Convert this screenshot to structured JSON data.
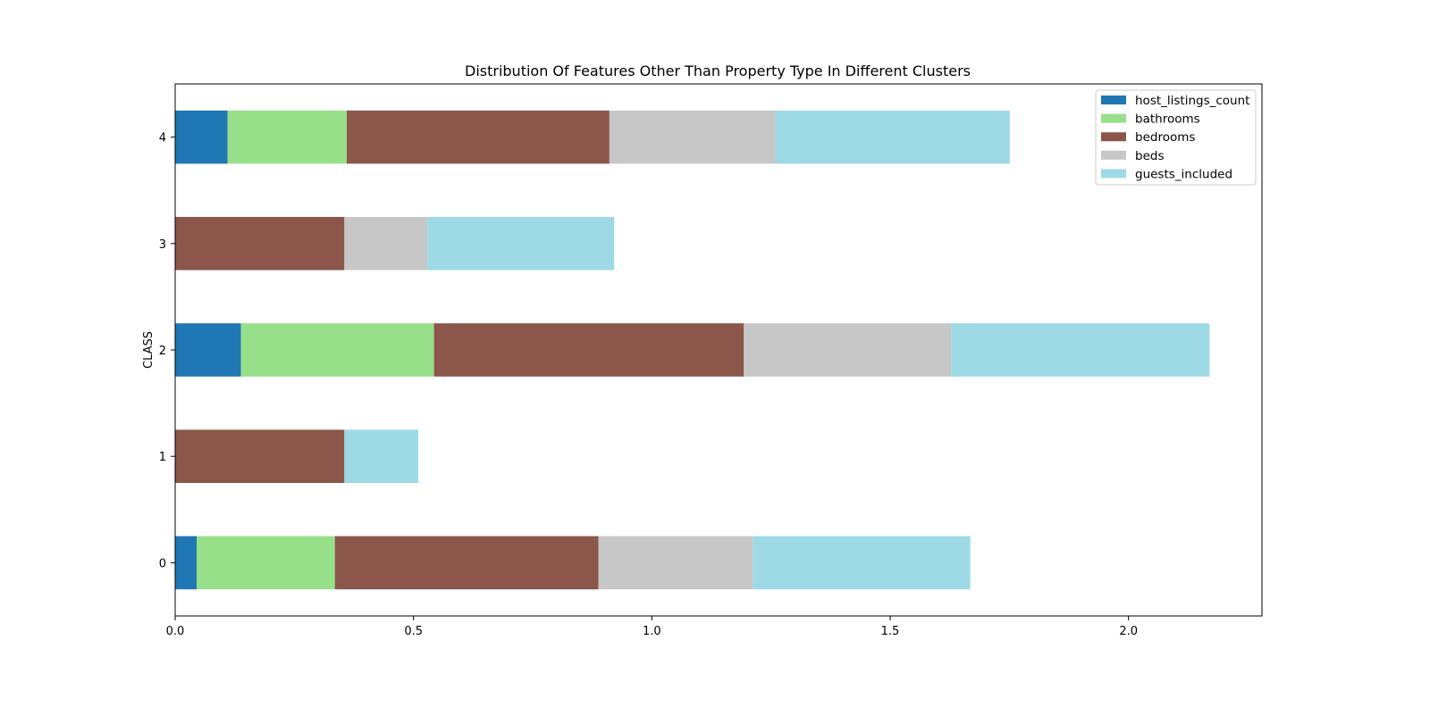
{
  "chart_data": {
    "type": "bar",
    "orientation": "horizontal",
    "stacked": true,
    "title": "Distribution Of Features Other Than Property Type In Different Clusters",
    "xlabel": "",
    "ylabel": "CLASS",
    "categories": [
      "0",
      "1",
      "2",
      "3",
      "4"
    ],
    "xlim": [
      0,
      2.28
    ],
    "xticks": [
      0.0,
      0.5,
      1.0,
      1.5,
      2.0
    ],
    "xtick_labels": [
      "0.0",
      "0.5",
      "1.0",
      "1.5",
      "2.0"
    ],
    "grid": false,
    "legend_position": "top-right",
    "series": [
      {
        "name": "host_listings_count",
        "color": "#1f77b4",
        "values": [
          0.045,
          0.0,
          0.138,
          0.0,
          0.11
        ]
      },
      {
        "name": "bathrooms",
        "color": "#98df8a",
        "values": [
          0.29,
          0.0,
          0.405,
          0.0,
          0.25
        ]
      },
      {
        "name": "bedrooms",
        "color": "#8c564b",
        "values": [
          0.553,
          0.355,
          0.65,
          0.355,
          0.551
        ]
      },
      {
        "name": "beds",
        "color": "#c7c7c7",
        "values": [
          0.324,
          0.0,
          0.435,
          0.174,
          0.348
        ]
      },
      {
        "name": "guests_included",
        "color": "#9edae5",
        "values": [
          0.456,
          0.155,
          0.542,
          0.392,
          0.492
        ]
      }
    ]
  }
}
